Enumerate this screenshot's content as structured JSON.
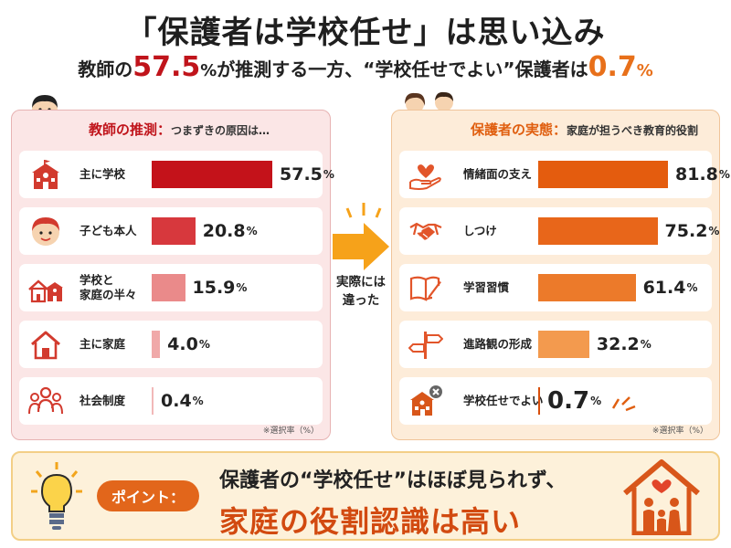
{
  "title": "「保護者は学校任せ」は思い込み",
  "subtitle": {
    "part1": "教師の",
    "teacher_value": "57.5",
    "unit": "%",
    "part2": "が推測する一方、“学校任せでよい”保護者は",
    "parent_value": "0.7"
  },
  "left_panel": {
    "heading": "教師の推測：",
    "heading_sub": "つまずきの原因は…",
    "note": "※選択率（%）"
  },
  "right_panel": {
    "heading": "保護者の実態：",
    "heading_sub": "家庭が担うべき教育的役割",
    "note": "※選択率（%）"
  },
  "arrow_text": {
    "line1": "実際には",
    "line2": "違った"
  },
  "bottom": {
    "badge": "ポイント：",
    "line1": "保護者の“学校任せ”はほぼ見られず、",
    "line2": "家庭の役割認識は高い"
  },
  "colors": {
    "teacher_bars": [
      "#c4121a",
      "#d7383d",
      "#ea8a8a",
      "#f0a9a9",
      "#f2b8b8"
    ],
    "parent_bars": [
      "#e45c0e",
      "#e8661a",
      "#ec7a2a",
      "#f39a4e",
      "#d94f0c"
    ]
  },
  "chart_data": [
    {
      "type": "bar",
      "orientation": "horizontal",
      "categories": [
        "主に学校",
        "子ども本人",
        "学校と家庭の半々",
        "主に家庭",
        "社会制度"
      ],
      "values": [
        57.5,
        20.8,
        15.9,
        4.0,
        0.4
      ],
      "value_labels": [
        "57.5",
        "20.8",
        "15.9",
        "4.0",
        "0.4"
      ],
      "category_lines": [
        [
          "主に学校"
        ],
        [
          "子ども本人"
        ],
        [
          "学校と",
          "家庭の半々"
        ],
        [
          "主に家庭"
        ],
        [
          "社会制度"
        ]
      ],
      "icons": [
        "school-icon",
        "child-icon",
        "school-and-home-icon",
        "home-icon",
        "people-icon"
      ],
      "unit": "%",
      "xlim": [
        0,
        57.5
      ]
    },
    {
      "type": "bar",
      "orientation": "horizontal",
      "categories": [
        "情緒面の支え",
        "しつけ",
        "学習習慣",
        "進路観の形成",
        "学校任せでよい"
      ],
      "values": [
        81.8,
        75.2,
        61.4,
        32.2,
        0.7
      ],
      "value_labels": [
        "81.8",
        "75.2",
        "61.4",
        "32.2",
        "0.7"
      ],
      "category_lines": [
        [
          "情緒面の支え"
        ],
        [
          "しつけ"
        ],
        [
          "学習習慣"
        ],
        [
          "進路観の形成"
        ],
        [
          "学校任せでよい"
        ]
      ],
      "icons": [
        "heart-hand-icon",
        "handshake-icon",
        "book-pencil-icon",
        "signpost-icon",
        "school-x-icon"
      ],
      "unit": "%",
      "xlim": [
        0,
        81.8
      ]
    }
  ]
}
